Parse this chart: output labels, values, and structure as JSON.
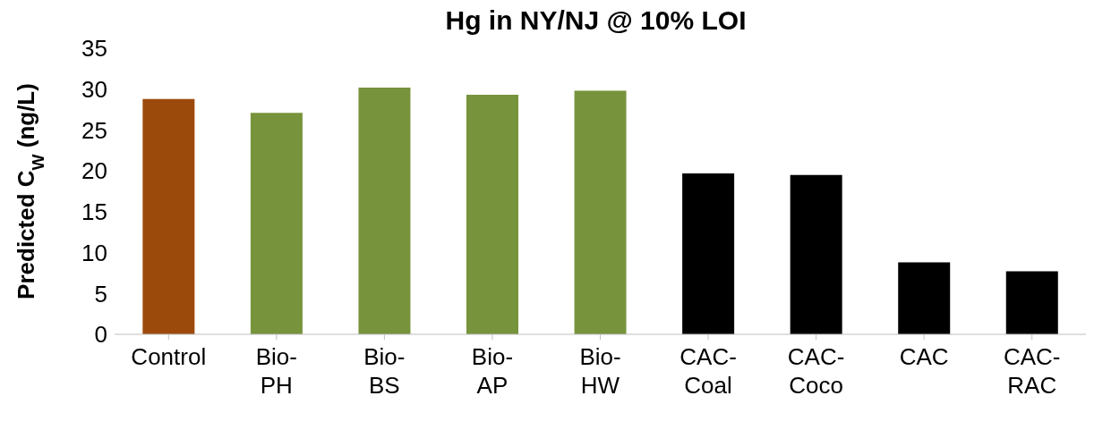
{
  "chart_data": {
    "type": "bar",
    "title": "Hg in NY/NJ @ 10% LOI",
    "ylabel": "Predicted C$_{W}$ (ng/L)",
    "categories": [
      "Control",
      "Bio-PH",
      "Bio-BS",
      "Bio-AP",
      "Bio-HW",
      "CAC-Coal",
      "CAC-Coco",
      "CAC",
      "CAC-RAC"
    ],
    "values": [
      28.8,
      27.1,
      30.2,
      29.3,
      29.8,
      19.7,
      19.5,
      8.8,
      7.7
    ],
    "colors": [
      "#9c4a0b",
      "#77933c",
      "#77933c",
      "#77933c",
      "#77933c",
      "#000000",
      "#000000",
      "#000000",
      "#000000"
    ],
    "ylim": [
      0,
      35
    ],
    "yticks": [
      0,
      5,
      10,
      15,
      20,
      25,
      30,
      35
    ],
    "legend": false
  }
}
